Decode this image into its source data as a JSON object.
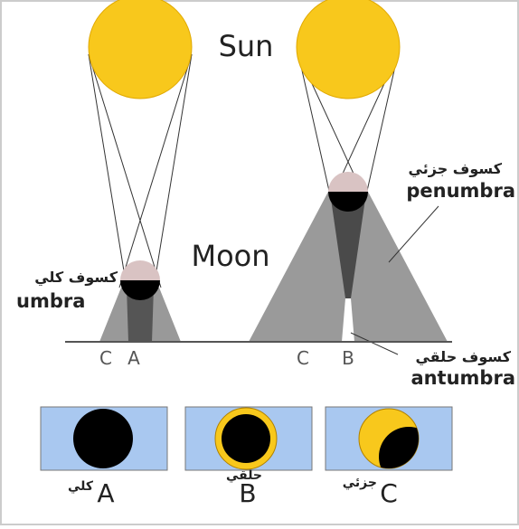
{
  "labels": {
    "sun": "Sun",
    "moon": "Moon"
  },
  "left": {
    "arabic": "كسوف كلي",
    "term": "umbra",
    "ground": [
      "C",
      "A"
    ]
  },
  "right": {
    "arabic_top": "كسوف جزئي",
    "term_top": "penumbra",
    "arabic_bottom": "كسوف حلقي",
    "term_bottom": "antumbra",
    "ground": [
      "C",
      "B"
    ]
  },
  "panels": [
    {
      "letter": "A",
      "arabic": "كلي"
    },
    {
      "letter": "B",
      "arabic": "حلقي"
    },
    {
      "letter": "C",
      "arabic": "جزئي"
    }
  ]
}
